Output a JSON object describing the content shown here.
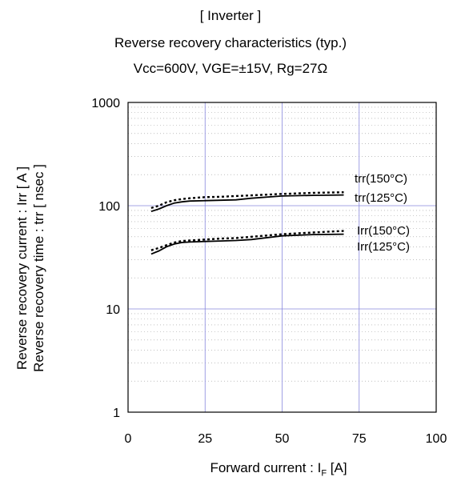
{
  "title_lines": [
    "[ Inverter ]",
    "Reverse recovery characteristics  (typ.)",
    "Vcc=600V,   VGE=±15V,   Rg=27Ω"
  ],
  "xlabel": {
    "main": "Forward current : I",
    "sub": "F",
    "unit": " [A]"
  },
  "ylabel_lines": [
    "Reverse recovery current  :  Irr  [ A ]",
    "Reverse recovery time  :  trr  [ nsec ]"
  ],
  "chart_data": {
    "type": "line",
    "title": "Reverse recovery characteristics (typ.)",
    "xlabel": "Forward current : IF [A]",
    "ylabel": "Reverse recovery current : Irr [ A ] / Reverse recovery time : trr [ nsec ]",
    "x_scale": "linear",
    "y_scale": "log",
    "xlim": [
      0,
      100
    ],
    "ylim": [
      1,
      1000
    ],
    "x_ticks": [
      "0",
      "25",
      "50",
      "75",
      "100"
    ],
    "y_ticks": [
      "1",
      "10",
      "100",
      "1000"
    ],
    "grid": true,
    "series": [
      {
        "name": "trr(150°C)",
        "style": "dotted",
        "x": [
          7.5,
          10,
          12.5,
          15,
          17.5,
          20,
          25,
          30,
          35,
          40,
          50,
          60,
          70
        ],
        "y": [
          95,
          100,
          108,
          113,
          116,
          118,
          121,
          122,
          124,
          126,
          130,
          133,
          135
        ]
      },
      {
        "name": "trr(125°C)",
        "style": "solid",
        "x": [
          7.5,
          10,
          12.5,
          15,
          17.5,
          20,
          25,
          30,
          35,
          40,
          50,
          60,
          70
        ],
        "y": [
          88,
          93,
          100,
          106,
          109,
          111,
          112,
          113,
          114,
          118,
          124,
          126,
          127
        ]
      },
      {
        "name": "Irr(150°C)",
        "style": "dotted",
        "x": [
          7.5,
          10,
          12.5,
          15,
          17.5,
          20,
          25,
          30,
          35,
          40,
          50,
          60,
          70
        ],
        "y": [
          37,
          39,
          41.5,
          44,
          45.5,
          46,
          47,
          48,
          48.5,
          50,
          53,
          55,
          57
        ]
      },
      {
        "name": "Irr(125°C)",
        "style": "solid",
        "x": [
          7.5,
          10,
          12.5,
          15,
          17.5,
          20,
          25,
          30,
          35,
          40,
          50,
          60,
          70
        ],
        "y": [
          34,
          36.5,
          40,
          42.5,
          44,
          44.5,
          45,
          45.5,
          46,
          47,
          51,
          52.5,
          53
        ]
      }
    ],
    "annotations": [
      "trr(150°C)",
      "trr(125°C)",
      "Irr(150°C)",
      "Irr(125°C)"
    ]
  }
}
